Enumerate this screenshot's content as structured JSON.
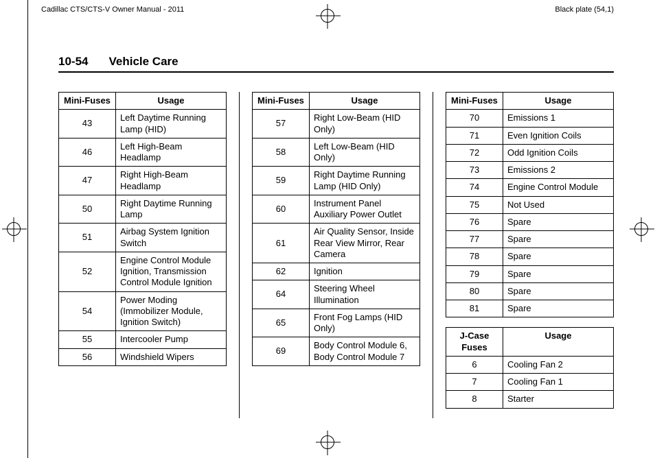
{
  "header": {
    "left": "Cadillac CTS/CTS-V Owner Manual - 2011",
    "right": "Black plate (54,1)"
  },
  "section": {
    "number": "10-54",
    "title": "Vehicle Care"
  },
  "tables": {
    "col1": {
      "head_left": "Mini-Fuses",
      "head_right": "Usage",
      "rows": [
        {
          "n": "43",
          "u": "Left Daytime Running Lamp (HID)"
        },
        {
          "n": "46",
          "u": "Left High-Beam Headlamp"
        },
        {
          "n": "47",
          "u": "Right High-Beam Headlamp"
        },
        {
          "n": "50",
          "u": "Right Daytime Running Lamp"
        },
        {
          "n": "51",
          "u": "Airbag System Ignition Switch"
        },
        {
          "n": "52",
          "u": "Engine Control Module Ignition, Transmission Control Module Ignition"
        },
        {
          "n": "54",
          "u": "Power Moding (Immobilizer Module, Ignition Switch)"
        },
        {
          "n": "55",
          "u": "Intercooler Pump"
        },
        {
          "n": "56",
          "u": "Windshield Wipers"
        }
      ]
    },
    "col2": {
      "head_left": "Mini-Fuses",
      "head_right": "Usage",
      "rows": [
        {
          "n": "57",
          "u": "Right Low-Beam (HID Only)"
        },
        {
          "n": "58",
          "u": "Left Low-Beam (HID Only)"
        },
        {
          "n": "59",
          "u": "Right Daytime Running Lamp (HID Only)"
        },
        {
          "n": "60",
          "u": "Instrument Panel Auxiliary Power Outlet"
        },
        {
          "n": "61",
          "u": "Air Quality Sensor, Inside Rear View Mirror, Rear Camera"
        },
        {
          "n": "62",
          "u": "Ignition"
        },
        {
          "n": "64",
          "u": "Steering Wheel Illumination"
        },
        {
          "n": "65",
          "u": "Front Fog Lamps (HID Only)"
        },
        {
          "n": "69",
          "u": "Body Control Module 6, Body Control Module 7"
        }
      ]
    },
    "col3a": {
      "head_left": "Mini-Fuses",
      "head_right": "Usage",
      "rows": [
        {
          "n": "70",
          "u": "Emissions 1"
        },
        {
          "n": "71",
          "u": "Even Ignition Coils"
        },
        {
          "n": "72",
          "u": "Odd Ignition Coils"
        },
        {
          "n": "73",
          "u": "Emissions 2"
        },
        {
          "n": "74",
          "u": "Engine Control Module"
        },
        {
          "n": "75",
          "u": "Not Used"
        },
        {
          "n": "76",
          "u": "Spare"
        },
        {
          "n": "77",
          "u": "Spare"
        },
        {
          "n": "78",
          "u": "Spare"
        },
        {
          "n": "79",
          "u": "Spare"
        },
        {
          "n": "80",
          "u": "Spare"
        },
        {
          "n": "81",
          "u": "Spare"
        }
      ]
    },
    "col3b": {
      "head_left": "J-Case Fuses",
      "head_right": "Usage",
      "rows": [
        {
          "n": "6",
          "u": "Cooling Fan 2"
        },
        {
          "n": "7",
          "u": "Cooling Fan 1"
        },
        {
          "n": "8",
          "u": "Starter"
        }
      ]
    }
  }
}
